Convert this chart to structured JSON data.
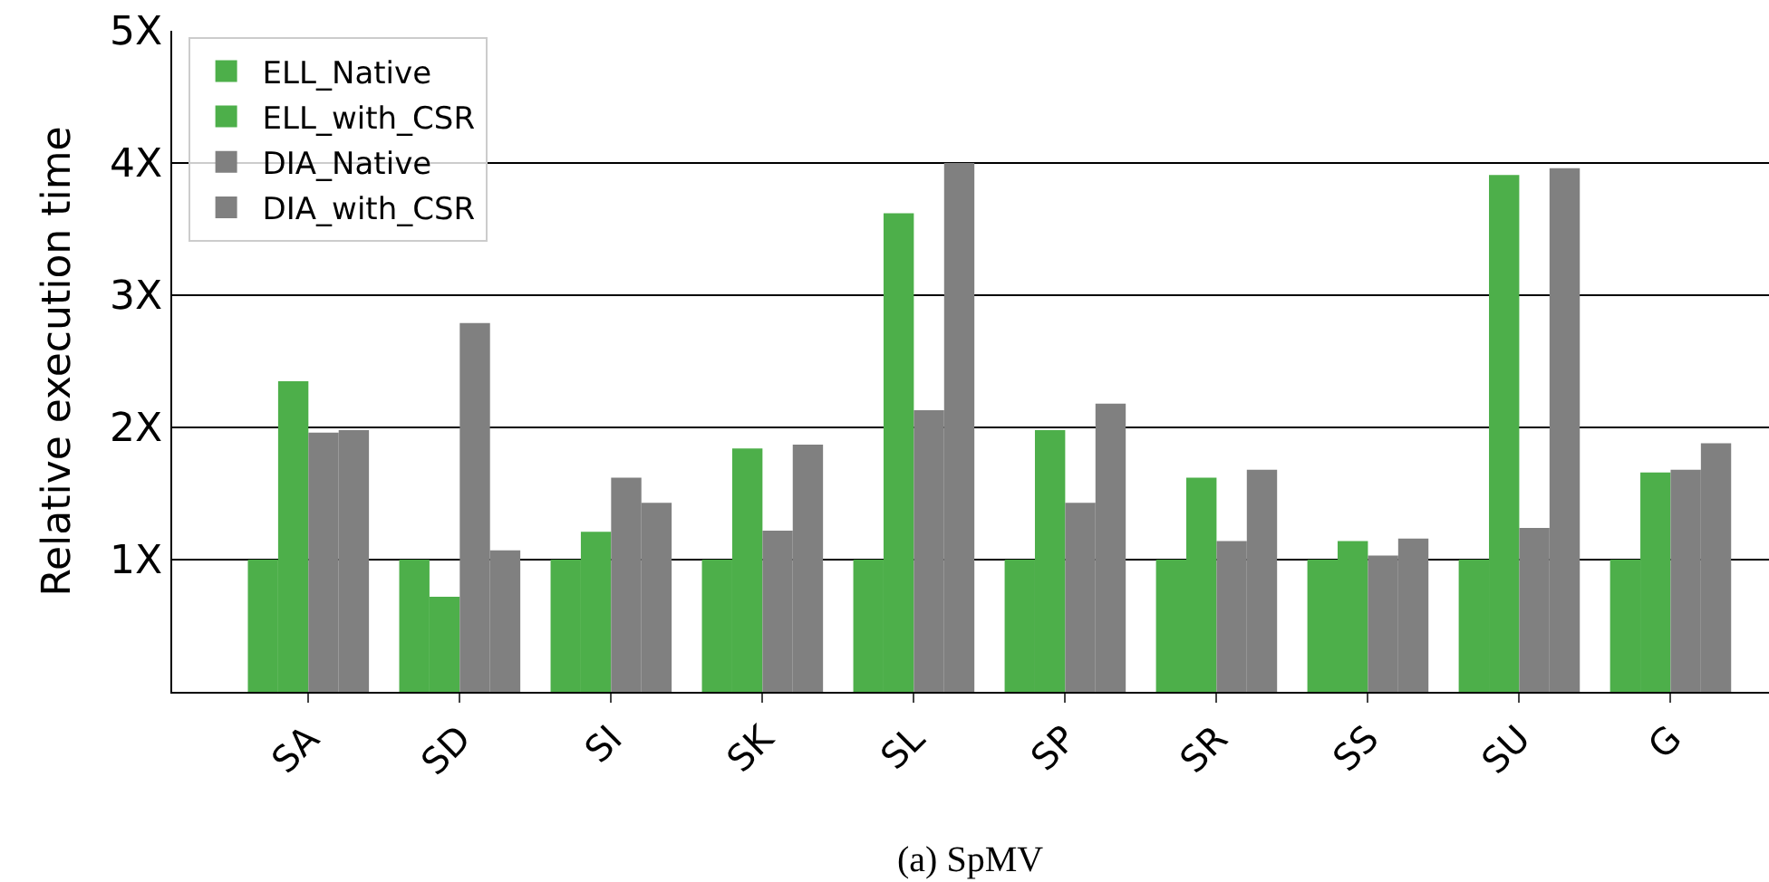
{
  "chart_data": {
    "type": "bar",
    "ylabel": "Relative execution time",
    "annotations": [
      "(a) SpMV"
    ],
    "categories": [
      "SA",
      "SD",
      "SI",
      "SK",
      "SL",
      "SP",
      "SR",
      "SS",
      "SU",
      "G"
    ],
    "series": [
      {
        "name": "ELL_Native",
        "color": "#4daf4a",
        "values": [
          1,
          1,
          1,
          1,
          1,
          1,
          1,
          1,
          1,
          1
        ]
      },
      {
        "name": "ELL_with_CSR",
        "color": "#4daf4a",
        "values": [
          2.35,
          0.72,
          1.21,
          1.84,
          3.62,
          1.98,
          1.62,
          1.14,
          3.91,
          1.66
        ]
      },
      {
        "name": "DIA_Native",
        "color": "#808080",
        "values": [
          1.96,
          2.79,
          1.62,
          1.22,
          2.13,
          1.43,
          1.14,
          1.03,
          1.24,
          1.68
        ]
      },
      {
        "name": "DIA_with_CSR",
        "color": "#808080",
        "values": [
          1.98,
          1.07,
          1.43,
          1.87,
          4.0,
          2.18,
          1.68,
          1.16,
          3.96,
          1.88
        ]
      }
    ],
    "ylim": [
      0,
      5
    ],
    "yticks": [
      {
        "value": 1,
        "label": "1X"
      },
      {
        "value": 2,
        "label": "2X"
      },
      {
        "value": 3,
        "label": "3X"
      },
      {
        "value": 4,
        "label": "4X"
      },
      {
        "value": 5,
        "label": "5X"
      }
    ],
    "grid": "y",
    "legend": "top left"
  }
}
